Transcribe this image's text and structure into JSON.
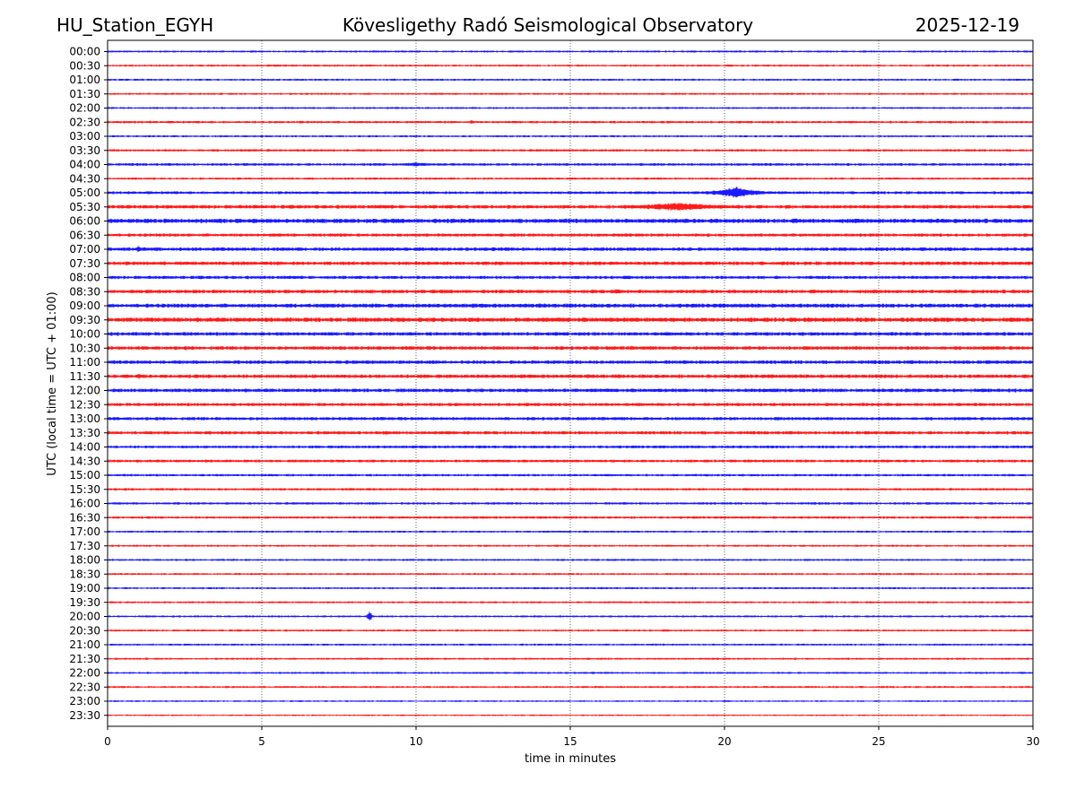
{
  "header": {
    "station": "HU_Station_EGYH",
    "title": "Kövesligethy Radó Seismological Observatory",
    "date": "2025-12-19"
  },
  "colors": {
    "even_trace": "#0000ff",
    "odd_trace": "#ff0000",
    "gridline": "#000000"
  },
  "chart_data": {
    "type": "line",
    "title": "Kövesligethy Radó Seismological Observatory",
    "xlabel": "time in minutes",
    "ylabel": "UTC (local time = UTC + 01:00)",
    "xlim": [
      0,
      30
    ],
    "x_ticks": [
      0,
      5,
      10,
      15,
      20,
      25,
      30
    ],
    "x_tick_labels": [
      "0",
      "5",
      "10",
      "15",
      "20",
      "25",
      "30"
    ],
    "grid": "vertical dotted at x ticks",
    "y_tick_labels": [
      "00:00",
      "00:30",
      "01:00",
      "01:30",
      "02:00",
      "02:30",
      "03:00",
      "03:30",
      "04:00",
      "04:30",
      "05:00",
      "05:30",
      "06:00",
      "06:30",
      "07:00",
      "07:30",
      "08:00",
      "08:30",
      "09:00",
      "09:30",
      "10:00",
      "10:30",
      "11:00",
      "11:30",
      "12:00",
      "12:30",
      "13:00",
      "13:30",
      "14:00",
      "14:30",
      "15:00",
      "15:30",
      "16:00",
      "16:30",
      "17:00",
      "17:30",
      "18:00",
      "18:30",
      "19:00",
      "19:30",
      "20:00",
      "20:30",
      "21:00",
      "21:30",
      "22:00",
      "22:30",
      "23:00",
      "23:30"
    ],
    "trace_noise_level": [
      1,
      1,
      1,
      1,
      1,
      1.2,
      1,
      1.2,
      1.3,
      1.1,
      1.4,
      1.8,
      2.2,
      1.6,
      1.8,
      1.8,
      1.6,
      1.8,
      2.0,
      2.2,
      1.8,
      1.8,
      1.8,
      1.8,
      1.8,
      1.6,
      1.6,
      1.6,
      1.4,
      1.4,
      1.2,
      1.2,
      1.2,
      1.2,
      1.0,
      1.0,
      1.0,
      1.0,
      1.0,
      1.0,
      1.0,
      1.0,
      1.0,
      1.0,
      1.0,
      1.0,
      0.8,
      0.8
    ],
    "events": [
      {
        "trace": "05:00",
        "minute": 20.4,
        "amplitude": 7,
        "duration_min": 2.0
      },
      {
        "trace": "05:30",
        "minute": 18.5,
        "amplitude": 5,
        "duration_min": 4.5
      },
      {
        "trace": "04:00",
        "minute": 10.0,
        "amplitude": 2.5,
        "duration_min": 2.5
      },
      {
        "trace": "07:00",
        "minute": 1.0,
        "amplitude": 4,
        "duration_min": 0.4
      },
      {
        "trace": "11:30",
        "minute": 1.0,
        "amplitude": 4,
        "duration_min": 0.4
      },
      {
        "trace": "20:00",
        "minute": 8.5,
        "amplitude": 6,
        "duration_min": 0.25
      },
      {
        "trace": "02:30",
        "minute": 11.8,
        "amplitude": 3,
        "duration_min": 0.2
      },
      {
        "trace": "08:30",
        "minute": 16.5,
        "amplitude": 3,
        "duration_min": 1.0
      },
      {
        "trace": "12:00",
        "minute": 21.5,
        "amplitude": 2.5,
        "duration_min": 2.5
      },
      {
        "trace": "09:00",
        "minute": 7.0,
        "amplitude": 2.5,
        "duration_min": 1.5
      },
      {
        "trace": "13:30",
        "minute": 11.0,
        "amplitude": 2,
        "duration_min": 3.0
      }
    ]
  }
}
